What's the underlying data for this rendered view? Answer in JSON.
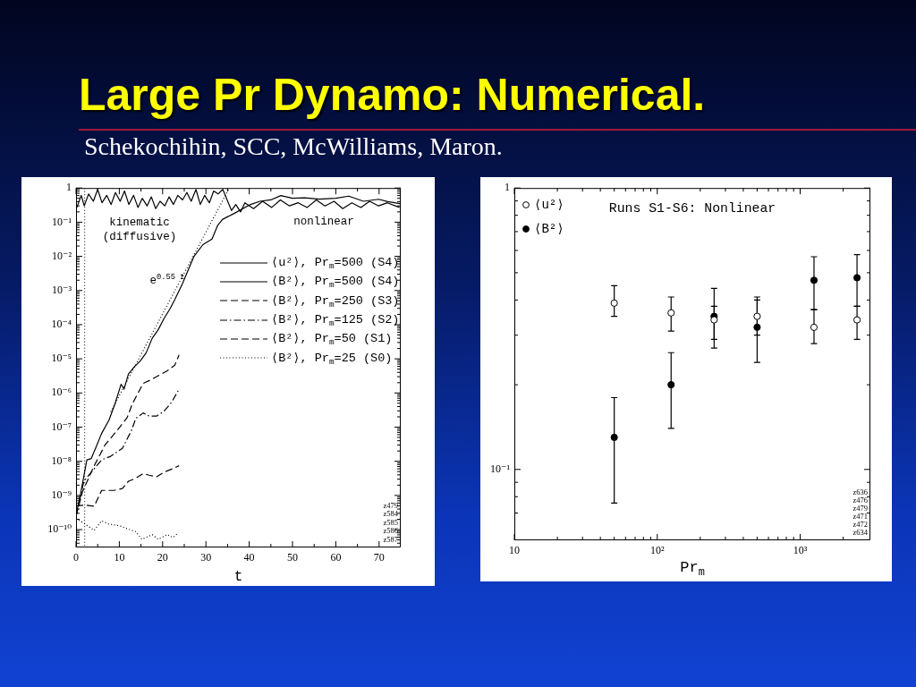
{
  "chart_data": [
    {
      "type": "line",
      "title": "Large Pr Dynamo: Numerical.",
      "subtitle": "Schekochihin, SCC, McWilliams, Maron.",
      "xlabel": "t",
      "xlim": [
        0,
        75
      ],
      "xticks": [
        0,
        {
          "value": 5,
          "label": null
        },
        10,
        {
          "value": 15,
          "label": null
        },
        20,
        {
          "value": 25,
          "label": null
        },
        30,
        {
          "value": 35,
          "label": null
        },
        40,
        {
          "value": 45,
          "label": null
        },
        50,
        {
          "value": 55,
          "label": null
        },
        60,
        {
          "value": 65,
          "label": null
        },
        70
      ],
      "ylim": [
        3e-11,
        1
      ],
      "yticks": [
        {
          "value": 4e-11,
          "label": null
        },
        {
          "value": 5e-11,
          "label": null
        },
        {
          "value": 6e-11,
          "label": null
        },
        {
          "value": 7e-11,
          "label": null
        },
        {
          "value": 8e-11,
          "label": null
        },
        {
          "value": 9e-11,
          "label": null
        },
        {
          "value": 1e-10,
          "label": "10⁻¹⁰"
        },
        {
          "value": 2e-10,
          "label": null
        },
        {
          "value": 3e-10,
          "label": null
        },
        {
          "value": 4e-10,
          "label": null
        },
        {
          "value": 5e-10,
          "label": null
        },
        {
          "value": 6e-10,
          "label": null
        },
        {
          "value": 7e-10,
          "label": null
        },
        {
          "value": 8e-10,
          "label": null
        },
        {
          "value": 9e-10,
          "label": null
        },
        {
          "value": 1e-09,
          "label": "10⁻⁹"
        },
        {
          "value": 2e-09,
          "label": null
        },
        {
          "value": 3e-09,
          "label": null
        },
        {
          "value": 4e-09,
          "label": null
        },
        {
          "value": 5e-09,
          "label": null
        },
        {
          "value": 6e-09,
          "label": null
        },
        {
          "value": 7e-09,
          "label": null
        },
        {
          "value": 8e-09,
          "label": null
        },
        {
          "value": 9e-09,
          "label": null
        },
        {
          "value": 1e-08,
          "label": "10⁻⁸"
        },
        {
          "value": 2e-08,
          "label": null
        },
        {
          "value": 3e-08,
          "label": null
        },
        {
          "value": 4e-08,
          "label": null
        },
        {
          "value": 5e-08,
          "label": null
        },
        {
          "value": 6e-08,
          "label": null
        },
        {
          "value": 7e-08,
          "label": null
        },
        {
          "value": 8e-08,
          "label": null
        },
        {
          "value": 9e-08,
          "label": null
        },
        {
          "value": 1e-07,
          "label": "10⁻⁷"
        },
        {
          "value": 2e-07,
          "label": null
        },
        {
          "value": 3e-07,
          "label": null
        },
        {
          "value": 4e-07,
          "label": null
        },
        {
          "value": 5e-07,
          "label": null
        },
        {
          "value": 6e-07,
          "label": null
        },
        {
          "value": 7e-07,
          "label": null
        },
        {
          "value": 8e-07,
          "label": null
        },
        {
          "value": 9e-07,
          "label": null
        },
        {
          "value": 1e-06,
          "label": "10⁻⁶"
        },
        {
          "value": 2e-06,
          "label": null
        },
        {
          "value": 3e-06,
          "label": null
        },
        {
          "value": 4e-06,
          "label": null
        },
        {
          "value": 5e-06,
          "label": null
        },
        {
          "value": 6e-06,
          "label": null
        },
        {
          "value": 7e-06,
          "label": null
        },
        {
          "value": 8e-06,
          "label": null
        },
        {
          "value": 9e-06,
          "label": null
        },
        {
          "value": 1e-05,
          "label": "10⁻⁵"
        },
        {
          "value": 2e-05,
          "label": null
        },
        {
          "value": 3e-05,
          "label": null
        },
        {
          "value": 4e-05,
          "label": null
        },
        {
          "value": 5e-05,
          "label": null
        },
        {
          "value": 6e-05,
          "label": null
        },
        {
          "value": 7e-05,
          "label": null
        },
        {
          "value": 8e-05,
          "label": null
        },
        {
          "value": 9e-05,
          "label": null
        },
        {
          "value": 0.0001,
          "label": "10⁻⁴"
        },
        {
          "value": 0.0002,
          "label": null
        },
        {
          "value": 0.0003,
          "label": null
        },
        {
          "value": 0.0004,
          "label": null
        },
        {
          "value": 0.0005,
          "label": null
        },
        {
          "value": 0.0006,
          "label": null
        },
        {
          "value": 0.0007,
          "label": null
        },
        {
          "value": 0.0008,
          "label": null
        },
        {
          "value": 0.0009,
          "label": null
        },
        {
          "value": 0.001,
          "label": "10⁻³"
        },
        {
          "value": 0.002,
          "label": null
        },
        {
          "value": 0.003,
          "label": null
        },
        {
          "value": 0.004,
          "label": null
        },
        {
          "value": 0.005,
          "label": null
        },
        {
          "value": 0.006,
          "label": null
        },
        {
          "value": 0.007,
          "label": null
        },
        {
          "value": 0.008,
          "label": null
        },
        {
          "value": 0.009,
          "label": null
        },
        {
          "value": 0.01,
          "label": "10⁻²"
        },
        {
          "value": 0.02,
          "label": null
        },
        {
          "value": 0.03,
          "label": null
        },
        {
          "value": 0.04,
          "label": null
        },
        {
          "value": 0.05,
          "label": null
        },
        {
          "value": 0.06,
          "label": null
        },
        {
          "value": 0.07,
          "label": null
        },
        {
          "value": 0.08,
          "label": null
        },
        {
          "value": 0.09,
          "label": null
        },
        {
          "value": 0.1,
          "label": "10⁻¹"
        },
        {
          "value": 0.2,
          "label": null
        },
        {
          "value": 0.3,
          "label": null
        },
        {
          "value": 0.4,
          "label": null
        },
        {
          "value": 0.5,
          "label": null
        },
        {
          "value": 0.6,
          "label": null
        },
        {
          "value": 0.7,
          "label": null
        },
        {
          "value": 0.8,
          "label": null
        },
        {
          "value": 0.9,
          "label": null
        },
        1
      ],
      "log": "y",
      "legend": "top right",
      "series": [
        {
          "name": "⟨u²⟩, Pr$_{m}$=500 (S4)",
          "color": "#000000",
          "line_style": "solid",
          "x": [
            0.2,
            1.2,
            1.9,
            2.9,
            4,
            5,
            6,
            7.1,
            8.1,
            9.1,
            10.2,
            11.2,
            12.2,
            13.3,
            14.3,
            15.3,
            16.4,
            17.4,
            18.4,
            19.4,
            20.5,
            21.5,
            22.5,
            23.5,
            24.6,
            25.6,
            26.6,
            27.7,
            28.7,
            29.7,
            30.8,
            31.8,
            32.8,
            33.9,
            34.9,
            35.9,
            36.9,
            38,
            39,
            41,
            43.1,
            45.2,
            47.2,
            49.3,
            51.3,
            53.4,
            55.5,
            57.5,
            59.6,
            61.6,
            63.7,
            65.8,
            67.8,
            69.9,
            71.9,
            74.7
          ],
          "values": [
            0.27,
            0.61,
            0.3,
            0.67,
            0.41,
            0.91,
            0.37,
            0.61,
            0.33,
            0.74,
            0.41,
            0.82,
            0.33,
            0.61,
            0.27,
            0.5,
            0.3,
            0.55,
            0.25,
            0.41,
            0.3,
            0.55,
            0.33,
            0.61,
            0.45,
            0.74,
            0.41,
            0.91,
            0.33,
            0.61,
            0.37,
            0.82,
            0.67,
            0.91,
            0.45,
            0.22,
            0.33,
            0.2,
            0.37,
            0.25,
            0.41,
            0.27,
            0.45,
            0.3,
            0.37,
            0.27,
            0.45,
            0.3,
            0.41,
            0.25,
            0.37,
            0.27,
            0.41,
            0.3,
            0.37,
            0.27
          ]
        },
        {
          "name": "⟨B²⟩, Pr$_{m}$=500 (S4)",
          "color": "#000000",
          "line_style": "solid",
          "x": [
            0,
            1.1,
            2.5,
            3.5,
            4.5,
            5.9,
            7.6,
            9,
            10.4,
            11.1,
            12.1,
            13.5,
            14.9,
            16.2,
            17.6,
            19,
            20.3,
            21.7,
            22.8,
            24.5,
            26.2,
            27.2,
            29.3,
            31.4,
            32.7,
            33.8,
            36.5,
            40.3,
            42.5,
            45,
            47.3,
            50,
            52.8,
            56.2,
            60,
            63,
            66.4,
            69.9,
            72,
            74.8
          ],
          "values": [
            2.6e-10,
            1.2e-09,
            1.1e-08,
            1.2e-08,
            2.4e-08,
            6.5e-08,
            1.6e-07,
            4.8e-07,
            1.8e-06,
            1.3e-06,
            3.6e-06,
            5.9e-06,
            8.9e-06,
            1.5e-05,
            4e-05,
            7.2e-05,
            0.00015,
            0.00029,
            0.00054,
            0.0015,
            0.0049,
            0.0098,
            0.022,
            0.032,
            0.08,
            0.12,
            0.18,
            0.33,
            0.41,
            0.45,
            0.6,
            0.5,
            0.52,
            0.47,
            0.5,
            0.58,
            0.41,
            0.47,
            0.4,
            0.35
          ]
        },
        {
          "name": "⟨B²⟩, Pr$_{m}$=250 (S3)",
          "color": "#000000",
          "line_style": "dashed",
          "x": [
            0,
            1.5,
            4.1,
            6.7,
            9.5,
            11.8,
            13,
            15.5,
            17.2,
            19,
            21,
            22.8,
            23.8
          ],
          "values": [
            2.5e-10,
            1.3e-09,
            7e-09,
            3e-08,
            8e-08,
            1.9e-07,
            4.8e-07,
            1.9e-06,
            2.4e-06,
            3.2e-06,
            4.4e-06,
            6.5e-06,
            1.3e-05
          ]
        },
        {
          "name": "⟨B²⟩, Pr$_{m}$=125 (S2)",
          "color": "#000000",
          "line_style": "dashdot",
          "x": [
            0,
            1.8,
            5.9,
            8,
            10.7,
            12.8,
            13.8,
            15.5,
            16.9,
            18.6,
            20.3,
            22.1,
            23.8
          ],
          "values": [
            2.5e-10,
            2.6e-09,
            1.1e-08,
            1.4e-08,
            2.4e-08,
            7.9e-08,
            1.8e-07,
            2.6e-07,
            2.1e-07,
            2.1e-07,
            2.9e-07,
            5.4e-07,
            1.3e-06
          ]
        },
        {
          "name": "⟨B²⟩, Pr$_{m}$=50 (S1)",
          "color": "#000000",
          "line_style": "dashed",
          "x": [
            0,
            2.1,
            4.2,
            5.9,
            8.7,
            10.7,
            12.1,
            13.8,
            15.5,
            16.9,
            18.6,
            20.3,
            22.1,
            23.8
          ],
          "values": [
            5e-10,
            5.2e-10,
            4.8e-10,
            1.4e-09,
            1.4e-09,
            1.6e-09,
            2.6e-09,
            3.2e-09,
            4.4e-09,
            3.9e-09,
            3.5e-09,
            4.8e-09,
            5.9e-09,
            7.4e-09
          ]
        },
        {
          "name": "⟨B²⟩, Pr$_{m}$=25 (S0)",
          "color": "#000000",
          "line_style": "dotted",
          "x": [
            0,
            2.1,
            4.2,
            5.9,
            7.6,
            10,
            11.8,
            13.8,
            15.2,
            17.6,
            19,
            21,
            22.4,
            23.6
          ],
          "values": [
            2.1e-10,
            1.45e-10,
            9.5e-11,
            1.8e-10,
            1.45e-10,
            1.3e-10,
            1.07e-10,
            8.7e-11,
            5.2e-11,
            7.1e-11,
            5.2e-11,
            7.1e-11,
            5.9e-11,
            7.9e-11
          ]
        },
        {
          "type": "line",
          "color": "#000000",
          "line_style": "dotted",
          "x": [
            8,
            35.4
          ],
          "values": [
            2.8e-07,
            1
          ]
        }
      ],
      "ref_lines": [
        {
          "axis": "x",
          "value": 2,
          "line_style": "dotted",
          "color": "#000000"
        }
      ],
      "annotations": [
        "kinematic\n(diffusive)",
        "nonlinear",
        "e$^{0.55 t}$",
        "z479",
        "z584",
        "z585",
        "z586",
        "z587"
      ]
    },
    {
      "type": "scatter",
      "title": "Runs S1-S6: Nonlinear",
      "xlabel": "Pr$_{m}$",
      "x": [
        50,
        125,
        250,
        500,
        1250,
        2500
      ],
      "xlim": [
        10,
        3100
      ],
      "xticks": [
        10,
        {
          "value": 20,
          "label": null
        },
        {
          "value": 30,
          "label": null
        },
        {
          "value": 40,
          "label": null
        },
        {
          "value": 50,
          "label": null
        },
        {
          "value": 60,
          "label": null
        },
        {
          "value": 70,
          "label": null
        },
        {
          "value": 80,
          "label": null
        },
        {
          "value": 90,
          "label": null
        },
        {
          "value": 100,
          "label": "10²"
        },
        {
          "value": 200,
          "label": null
        },
        {
          "value": 300,
          "label": null
        },
        {
          "value": 400,
          "label": null
        },
        {
          "value": 500,
          "label": null
        },
        {
          "value": 600,
          "label": null
        },
        {
          "value": 700,
          "label": null
        },
        {
          "value": 800,
          "label": null
        },
        {
          "value": 900,
          "label": null
        },
        {
          "value": 1000,
          "label": "10³"
        },
        {
          "value": 2000,
          "label": null
        }
      ],
      "ylim": [
        0.056,
        1
      ],
      "yticks": [
        {
          "value": 0.07,
          "label": null
        },
        {
          "value": 0.08,
          "label": null
        },
        {
          "value": 0.09,
          "label": null
        },
        {
          "value": 0.1,
          "label": "10⁻¹"
        },
        {
          "value": 0.2,
          "label": null
        },
        {
          "value": 0.3,
          "label": null
        },
        {
          "value": 0.4,
          "label": null
        },
        {
          "value": 0.5,
          "label": null
        },
        {
          "value": 0.6,
          "label": null
        },
        {
          "value": 0.7,
          "label": null
        },
        {
          "value": 0.8,
          "label": null
        },
        {
          "value": 0.9,
          "label": null
        },
        1
      ],
      "log": "xy",
      "legend": "top left",
      "marker": "circle",
      "series": [
        {
          "name": "⟨u²⟩",
          "color": "#ffffff",
          "values": [
            0.39,
            0.36,
            0.34,
            0.35,
            0.32,
            0.34
          ],
          "errors": [
            [
              0.35,
              0.45
            ],
            [
              0.31,
              0.41
            ],
            [
              0.29,
              0.38
            ],
            [
              0.3,
              0.4
            ],
            [
              0.28,
              0.37
            ],
            [
              0.29,
              0.38
            ]
          ]
        },
        {
          "name": "⟨B²⟩",
          "color": "#000000",
          "values": [
            0.13,
            0.2,
            0.35,
            0.32,
            0.47,
            0.48
          ],
          "errors": [
            [
              0.076,
              0.18
            ],
            [
              0.14,
              0.26
            ],
            [
              0.27,
              0.44
            ],
            [
              0.24,
              0.41
            ],
            [
              0.37,
              0.57
            ],
            [
              0.38,
              0.58
            ]
          ]
        }
      ],
      "annotations": [
        "z636",
        "z476",
        "z479",
        "z471",
        "z472",
        "z634"
      ]
    }
  ]
}
